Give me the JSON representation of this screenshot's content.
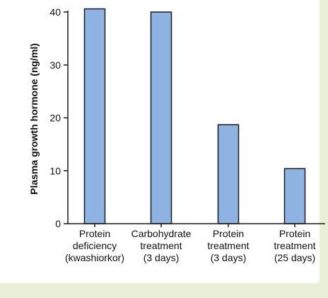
{
  "chart_data": {
    "type": "bar",
    "title": "",
    "xlabel": "",
    "ylabel": "Plasma growth hormone (ng/ml)",
    "ylim": [
      0,
      40
    ],
    "yticks": [
      0,
      10,
      20,
      30,
      40
    ],
    "grid": false,
    "categories": [
      [
        "Protein",
        "deficiency",
        "(kwashiorkor)"
      ],
      [
        "Carbohydrate",
        "treatment",
        "(3 days)"
      ],
      [
        "Protein",
        "treatment",
        "(3 days)"
      ],
      [
        "Protein",
        "treatment",
        "(25 days)"
      ]
    ],
    "values": [
      40.6,
      40.0,
      18.7,
      10.4
    ],
    "colors": {
      "bar_fill": "#8fb4e3",
      "bar_stroke": "#1a1a1a",
      "axis": "#1a1a1a",
      "background_tint": "#e8f0d8"
    }
  }
}
